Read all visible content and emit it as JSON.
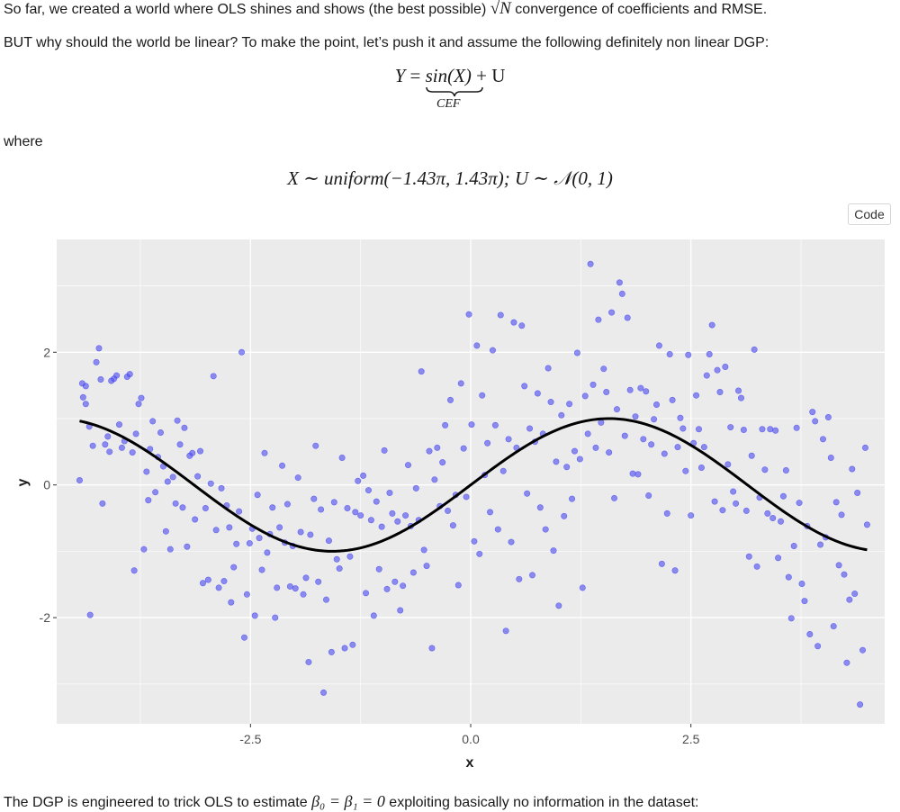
{
  "text": {
    "p1_before": "So far, we created a world where OLS shines and shows (the best possible) ",
    "p1_sqrt": "√",
    "p1_N": "N",
    "p1_after": " convergence of coefficients and RMSE.",
    "p2": "BUT why should the world be linear? To make the point, let’s push it and assume the following definitely non linear DGP:",
    "eq1_Y": "Y",
    "eq1_eq": " = ",
    "eq1_sin": "sin(X)",
    "eq1_plus": " + U",
    "eq1_brace_label": "CEF",
    "where": "where",
    "eq2": "X ∼ uniform(−1.43π, 1.43π); U ∼ 𝒩(0, 1)",
    "code_button": "Code",
    "p_last_before": "The DGP is engineered to trick OLS to estimate ",
    "p_last_math": "β₀ = β₁ = 0",
    "p_last_after": " exploiting basically no information in the dataset:"
  },
  "colors": {
    "panel": "#ebebeb",
    "grid": "#ffffff",
    "points": "#4a4af0",
    "curve": "#000000"
  },
  "chart_data": {
    "type": "scatter",
    "xlabel": "x",
    "ylabel": "y",
    "xlim": [
      -4.7,
      4.7
    ],
    "ylim": [
      -3.6,
      3.7
    ],
    "xticks": [
      -2.5,
      0.0,
      2.5
    ],
    "xtick_labels": [
      "-2.5",
      "0.0",
      "2.5"
    ],
    "yticks": [
      -2,
      0,
      2
    ],
    "ytick_labels": [
      "-2",
      "0",
      "2"
    ],
    "grid": true,
    "points": [
      [
        -4.44,
        0.07
      ],
      [
        -4.41,
        1.53
      ],
      [
        -4.37,
        1.49
      ],
      [
        -4.4,
        1.32
      ],
      [
        -4.37,
        1.22
      ],
      [
        -4.32,
        -1.96
      ],
      [
        -4.33,
        0.88
      ],
      [
        -4.29,
        0.59
      ],
      [
        -4.25,
        1.85
      ],
      [
        -4.22,
        2.06
      ],
      [
        -4.2,
        1.59
      ],
      [
        -4.18,
        -0.28
      ],
      [
        -4.15,
        0.61
      ],
      [
        -4.12,
        0.73
      ],
      [
        -4.1,
        0.5
      ],
      [
        -4.08,
        1.57
      ],
      [
        -4.05,
        1.6
      ],
      [
        -4.02,
        1.65
      ],
      [
        -3.99,
        0.91
      ],
      [
        -3.96,
        0.56
      ],
      [
        -3.93,
        0.66
      ],
      [
        -3.9,
        1.63
      ],
      [
        -3.87,
        1.67
      ],
      [
        -3.84,
        0.49
      ],
      [
        -3.82,
        -1.29
      ],
      [
        -3.8,
        0.77
      ],
      [
        -3.77,
        1.22
      ],
      [
        -3.74,
        1.31
      ],
      [
        -3.71,
        -0.97
      ],
      [
        -3.68,
        0.2
      ],
      [
        -3.66,
        -0.23
      ],
      [
        -3.64,
        0.54
      ],
      [
        -3.61,
        0.96
      ],
      [
        -3.58,
        -0.11
      ],
      [
        -3.55,
        0.42
      ],
      [
        -3.52,
        0.79
      ],
      [
        -3.49,
        0.28
      ],
      [
        -3.46,
        -0.7
      ],
      [
        -3.44,
        0.05
      ],
      [
        -3.41,
        -0.97
      ],
      [
        -3.38,
        0.12
      ],
      [
        -3.35,
        -0.28
      ],
      [
        -3.33,
        0.97
      ],
      [
        -3.3,
        0.61
      ],
      [
        -3.27,
        -0.34
      ],
      [
        -3.25,
        0.86
      ],
      [
        -3.22,
        -0.93
      ],
      [
        -3.19,
        0.44
      ],
      [
        -3.16,
        0.48
      ],
      [
        -3.13,
        -0.52
      ],
      [
        -3.1,
        0.13
      ],
      [
        -3.07,
        0.51
      ],
      [
        -3.04,
        -1.48
      ],
      [
        -3.01,
        -0.35
      ],
      [
        -2.98,
        -1.43
      ],
      [
        -2.95,
        0.02
      ],
      [
        -2.92,
        1.64
      ],
      [
        -2.89,
        -0.68
      ],
      [
        -2.86,
        -1.55
      ],
      [
        -2.83,
        -0.05
      ],
      [
        -2.8,
        -1.45
      ],
      [
        -2.77,
        -0.31
      ],
      [
        -2.74,
        -0.64
      ],
      [
        -2.72,
        -1.77
      ],
      [
        -2.69,
        -1.24
      ],
      [
        -2.66,
        -0.89
      ],
      [
        -2.63,
        -0.4
      ],
      [
        -2.6,
        2.0
      ],
      [
        -2.57,
        -2.3
      ],
      [
        -2.54,
        -1.65
      ],
      [
        -2.51,
        -0.88
      ],
      [
        -2.48,
        -0.66
      ],
      [
        -2.45,
        -1.97
      ],
      [
        -2.42,
        -0.15
      ],
      [
        -2.4,
        -0.8
      ],
      [
        -2.37,
        -1.28
      ],
      [
        -2.34,
        0.48
      ],
      [
        -2.31,
        -1.02
      ],
      [
        -2.28,
        -0.74
      ],
      [
        -2.25,
        -0.34
      ],
      [
        -2.22,
        -2.0
      ],
      [
        -2.2,
        -1.55
      ],
      [
        -2.17,
        -0.64
      ],
      [
        -2.14,
        0.29
      ],
      [
        -2.11,
        -0.87
      ],
      [
        -2.08,
        -0.29
      ],
      [
        -2.05,
        -1.53
      ],
      [
        -2.02,
        -0.92
      ],
      [
        -1.99,
        -1.56
      ],
      [
        -1.96,
        0.11
      ],
      [
        -1.93,
        -0.71
      ],
      [
        -1.9,
        -1.65
      ],
      [
        -1.87,
        -1.4
      ],
      [
        -1.84,
        -2.67
      ],
      [
        -1.82,
        -0.75
      ],
      [
        -1.78,
        -0.21
      ],
      [
        -1.76,
        0.59
      ],
      [
        -1.73,
        -1.46
      ],
      [
        -1.7,
        -0.37
      ],
      [
        -1.67,
        -3.13
      ],
      [
        -1.64,
        -1.73
      ],
      [
        -1.61,
        -0.84
      ],
      [
        -1.58,
        -2.52
      ],
      [
        -1.55,
        -0.26
      ],
      [
        -1.52,
        -1.12
      ],
      [
        -1.49,
        -1.26
      ],
      [
        -1.46,
        0.41
      ],
      [
        -1.43,
        -2.46
      ],
      [
        -1.4,
        -0.35
      ],
      [
        -1.37,
        -1.08
      ],
      [
        -1.34,
        -2.41
      ],
      [
        -1.31,
        -0.41
      ],
      [
        -1.28,
        0.06
      ],
      [
        -1.25,
        -0.46
      ],
      [
        -1.22,
        0.14
      ],
      [
        -1.19,
        -1.63
      ],
      [
        -1.16,
        -0.08
      ],
      [
        -1.13,
        -0.53
      ],
      [
        -1.1,
        -1.97
      ],
      [
        -1.07,
        -0.25
      ],
      [
        -1.04,
        -1.27
      ],
      [
        -1.01,
        -0.63
      ],
      [
        -0.98,
        0.52
      ],
      [
        -0.95,
        -1.57
      ],
      [
        -0.92,
        -0.12
      ],
      [
        -0.89,
        -0.43
      ],
      [
        -0.86,
        -1.46
      ],
      [
        -0.83,
        -0.55
      ],
      [
        -0.8,
        -1.89
      ],
      [
        -0.77,
        -1.52
      ],
      [
        -0.74,
        -0.46
      ],
      [
        -0.71,
        0.3
      ],
      [
        -0.68,
        -0.62
      ],
      [
        -0.65,
        -1.32
      ],
      [
        -0.62,
        -0.05
      ],
      [
        -0.59,
        -0.53
      ],
      [
        -0.56,
        1.71
      ],
      [
        -0.53,
        -0.98
      ],
      [
        -0.5,
        -1.22
      ],
      [
        -0.47,
        0.51
      ],
      [
        -0.44,
        -2.46
      ],
      [
        -0.41,
        0.08
      ],
      [
        -0.38,
        0.56
      ],
      [
        -0.35,
        -0.32
      ],
      [
        -0.32,
        0.34
      ],
      [
        -0.29,
        0.9
      ],
      [
        -0.26,
        -0.39
      ],
      [
        -0.23,
        1.28
      ],
      [
        -0.2,
        -0.61
      ],
      [
        -0.17,
        -0.15
      ],
      [
        -0.14,
        -1.51
      ],
      [
        -0.11,
        1.53
      ],
      [
        -0.08,
        0.55
      ],
      [
        -0.05,
        -0.18
      ],
      [
        -0.02,
        2.57
      ],
      [
        0.01,
        0.91
      ],
      [
        0.04,
        -0.85
      ],
      [
        0.07,
        2.1
      ],
      [
        0.1,
        -1.04
      ],
      [
        0.13,
        1.35
      ],
      [
        0.16,
        0.15
      ],
      [
        0.19,
        0.63
      ],
      [
        0.22,
        -0.41
      ],
      [
        0.25,
        2.03
      ],
      [
        0.28,
        0.9
      ],
      [
        0.31,
        -0.67
      ],
      [
        0.34,
        2.56
      ],
      [
        0.37,
        0.21
      ],
      [
        0.4,
        -2.2
      ],
      [
        0.43,
        0.69
      ],
      [
        0.46,
        -0.86
      ],
      [
        0.49,
        2.45
      ],
      [
        0.52,
        0.56
      ],
      [
        0.55,
        -1.42
      ],
      [
        0.58,
        2.4
      ],
      [
        0.61,
        1.49
      ],
      [
        0.64,
        -0.13
      ],
      [
        0.67,
        0.85
      ],
      [
        0.7,
        -1.36
      ],
      [
        0.73,
        0.65
      ],
      [
        0.76,
        1.38
      ],
      [
        0.79,
        -0.34
      ],
      [
        0.82,
        0.77
      ],
      [
        0.85,
        -0.67
      ],
      [
        0.88,
        1.76
      ],
      [
        0.91,
        1.25
      ],
      [
        0.94,
        -0.99
      ],
      [
        0.97,
        0.35
      ],
      [
        1.0,
        -1.82
      ],
      [
        1.03,
        1.05
      ],
      [
        1.06,
        -0.47
      ],
      [
        1.09,
        0.27
      ],
      [
        1.12,
        1.22
      ],
      [
        1.15,
        -0.21
      ],
      [
        1.18,
        0.51
      ],
      [
        1.21,
        1.99
      ],
      [
        1.24,
        0.39
      ],
      [
        1.27,
        -1.55
      ],
      [
        1.3,
        1.34
      ],
      [
        1.33,
        0.77
      ],
      [
        1.36,
        3.33
      ],
      [
        1.39,
        1.51
      ],
      [
        1.42,
        0.56
      ],
      [
        1.45,
        2.49
      ],
      [
        1.48,
        0.94
      ],
      [
        1.51,
        1.75
      ],
      [
        1.54,
        1.4
      ],
      [
        1.57,
        0.49
      ],
      [
        1.6,
        2.6
      ],
      [
        1.63,
        -0.2
      ],
      [
        1.66,
        1.14
      ],
      [
        1.69,
        3.05
      ],
      [
        1.72,
        2.88
      ],
      [
        1.75,
        0.74
      ],
      [
        1.78,
        2.52
      ],
      [
        1.81,
        1.43
      ],
      [
        1.84,
        0.17
      ],
      [
        1.87,
        1.03
      ],
      [
        1.9,
        0.16
      ],
      [
        1.93,
        1.46
      ],
      [
        1.96,
        0.69
      ],
      [
        1.99,
        1.41
      ],
      [
        2.02,
        -0.16
      ],
      [
        2.05,
        0.61
      ],
      [
        2.08,
        0.99
      ],
      [
        2.11,
        1.21
      ],
      [
        2.14,
        2.1
      ],
      [
        2.17,
        -1.19
      ],
      [
        2.2,
        0.47
      ],
      [
        2.23,
        -0.43
      ],
      [
        2.26,
        1.97
      ],
      [
        2.29,
        1.28
      ],
      [
        2.32,
        -1.29
      ],
      [
        2.35,
        0.57
      ],
      [
        2.38,
        1.01
      ],
      [
        2.41,
        0.85
      ],
      [
        2.44,
        0.21
      ],
      [
        2.47,
        1.96
      ],
      [
        2.5,
        -0.46
      ],
      [
        2.53,
        0.63
      ],
      [
        2.56,
        1.35
      ],
      [
        2.59,
        0.84
      ],
      [
        2.62,
        0.26
      ],
      [
        2.65,
        0.57
      ],
      [
        2.68,
        1.65
      ],
      [
        2.71,
        1.97
      ],
      [
        2.74,
        2.41
      ],
      [
        2.77,
        -0.25
      ],
      [
        2.8,
        1.73
      ],
      [
        2.83,
        1.4
      ],
      [
        2.86,
        -0.38
      ],
      [
        2.89,
        1.78
      ],
      [
        2.92,
        0.31
      ],
      [
        2.95,
        0.87
      ],
      [
        2.98,
        -0.1
      ],
      [
        3.01,
        -0.28
      ],
      [
        3.04,
        1.42
      ],
      [
        3.07,
        1.31
      ],
      [
        3.1,
        0.83
      ],
      [
        3.13,
        -0.39
      ],
      [
        3.16,
        -1.08
      ],
      [
        3.19,
        0.44
      ],
      [
        3.22,
        2.04
      ],
      [
        3.25,
        -1.23
      ],
      [
        3.28,
        -0.19
      ],
      [
        3.31,
        0.84
      ],
      [
        3.34,
        0.23
      ],
      [
        3.37,
        -0.43
      ],
      [
        3.4,
        0.84
      ],
      [
        3.43,
        -0.5
      ],
      [
        3.46,
        0.82
      ],
      [
        3.49,
        -1.1
      ],
      [
        3.52,
        -0.55
      ],
      [
        3.55,
        -0.17
      ],
      [
        3.58,
        0.22
      ],
      [
        3.61,
        -1.39
      ],
      [
        3.64,
        -2.01
      ],
      [
        3.67,
        -0.92
      ],
      [
        3.7,
        0.86
      ],
      [
        3.73,
        -0.27
      ],
      [
        3.76,
        -1.49
      ],
      [
        3.79,
        -1.75
      ],
      [
        3.82,
        -0.62
      ],
      [
        3.85,
        -2.25
      ],
      [
        3.88,
        1.1
      ],
      [
        3.91,
        0.96
      ],
      [
        3.94,
        -2.43
      ],
      [
        3.97,
        -0.9
      ],
      [
        4.0,
        0.69
      ],
      [
        4.03,
        -0.79
      ],
      [
        4.06,
        1.02
      ],
      [
        4.09,
        0.41
      ],
      [
        4.12,
        -2.13
      ],
      [
        4.15,
        -0.26
      ],
      [
        4.18,
        -1.21
      ],
      [
        4.21,
        -0.45
      ],
      [
        4.24,
        -1.35
      ],
      [
        4.27,
        -2.68
      ],
      [
        4.3,
        -1.73
      ],
      [
        4.33,
        0.24
      ],
      [
        4.36,
        -1.64
      ],
      [
        4.39,
        -0.12
      ],
      [
        4.42,
        -3.31
      ],
      [
        4.45,
        -2.49
      ],
      [
        4.48,
        0.56
      ],
      [
        4.5,
        -0.6
      ]
    ]
  }
}
